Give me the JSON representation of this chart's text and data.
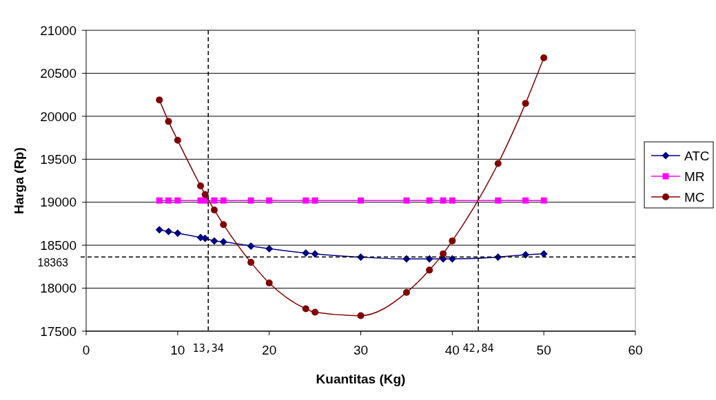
{
  "chart_data": {
    "type": "line",
    "xlabel": "Kuantitas (Kg)",
    "ylabel": "Harga (Rp)",
    "xlim": [
      0,
      60
    ],
    "xticks": [
      0,
      10,
      20,
      30,
      40,
      50,
      60
    ],
    "ylim": [
      17500,
      21000
    ],
    "yticks": [
      17500,
      18000,
      18500,
      19000,
      19500,
      20000,
      20500,
      21000
    ],
    "grid": "y",
    "legend": "right",
    "line_style": "solid",
    "x": [
      8,
      9,
      10,
      12.5,
      13,
      14,
      15,
      18,
      20,
      24,
      25,
      30,
      35,
      37.5,
      39,
      40,
      45,
      48,
      50
    ],
    "series": [
      {
        "name": "ATC",
        "color": "#000080",
        "marker": "diamond",
        "values": [
          18680,
          18660,
          18640,
          18590,
          18580,
          18550,
          18540,
          18490,
          18460,
          18410,
          18400,
          18360,
          18340,
          18340,
          18340,
          18340,
          18360,
          18390,
          18400
        ]
      },
      {
        "name": "MR",
        "color": "#ff00ff",
        "marker": "square",
        "values": [
          19020,
          19020,
          19020,
          19020,
          19020,
          19020,
          19020,
          19020,
          19020,
          19020,
          19020,
          19020,
          19020,
          19020,
          19020,
          19020,
          19020,
          19020,
          19020
        ]
      },
      {
        "name": "MC",
        "color": "#800000",
        "marker": "circle",
        "values": [
          20190,
          19940,
          19720,
          19190,
          19090,
          18910,
          18740,
          18300,
          18060,
          17760,
          17720,
          17680,
          17950,
          18210,
          18400,
          18550,
          19450,
          20150,
          20680
        ]
      }
    ],
    "ref_lines": [
      {
        "axis": "y",
        "value": 18363,
        "label": "18363",
        "line_style": "dashed"
      },
      {
        "axis": "x",
        "value": 13.34,
        "label": "13,34",
        "line_style": "dashed"
      },
      {
        "axis": "x",
        "value": 42.84,
        "label": "42,84",
        "line_style": "dashed"
      }
    ]
  }
}
